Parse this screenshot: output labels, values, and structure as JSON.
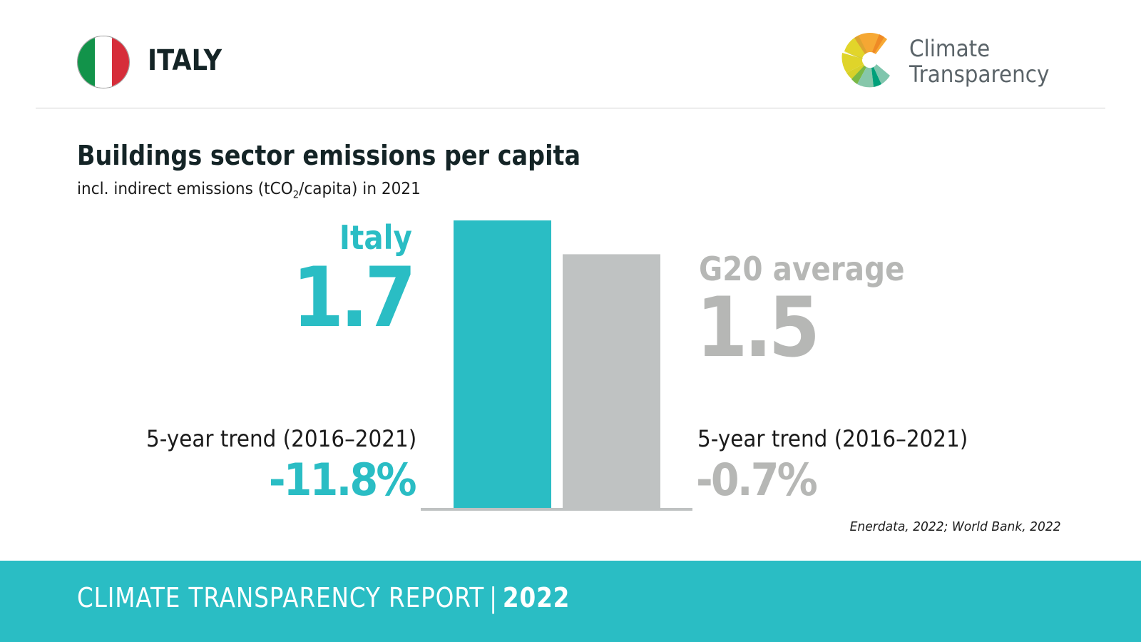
{
  "header": {
    "country": "ITALY",
    "flag_colors": [
      "#12934a",
      "#ffffff",
      "#d62d3a"
    ],
    "logo": {
      "icon": "climate-transparency-logo-icon",
      "line1": "Climate",
      "line2": "Transparency"
    }
  },
  "title": "Buildings sector emissions per capita",
  "subtitle": {
    "prefix": "incl. indirect emissions (tCO",
    "subscript": "2",
    "suffix": "/capita) in 2021"
  },
  "colors": {
    "accent": "#2abdc4",
    "g20_gray": "#bfc2c2",
    "g20_text": "#b6b7b5",
    "baseline": "#bfc2c2"
  },
  "chart_data": {
    "type": "bar",
    "title": "Buildings sector emissions per capita",
    "subtitle": "incl. indirect emissions (tCO2/capita) in 2021",
    "categories": [
      "Italy",
      "G20 average"
    ],
    "values": [
      1.7,
      1.5
    ],
    "unit": "tCO2/capita",
    "xlabel": "",
    "ylabel": "",
    "ylim": [
      0,
      1.7
    ],
    "grid": false,
    "legend": "none",
    "series": [
      {
        "name": "Italy",
        "value": 1.7,
        "display_value": "1.7",
        "color": "#2abdc4",
        "trend_label": "5-year trend (2016–2021)",
        "trend_value": "-11.8%"
      },
      {
        "name": "G20 average",
        "value": 1.5,
        "display_value": "1.5",
        "color": "#bfc2c2",
        "trend_label": "5-year trend (2016–2021)",
        "trend_value": "-0.7%"
      }
    ]
  },
  "source": "Enerdata, 2022; World Bank, 2022",
  "footer": {
    "report_name": "CLIMATE TRANSPARENCY REPORT",
    "separator": "|",
    "year": "2022"
  }
}
